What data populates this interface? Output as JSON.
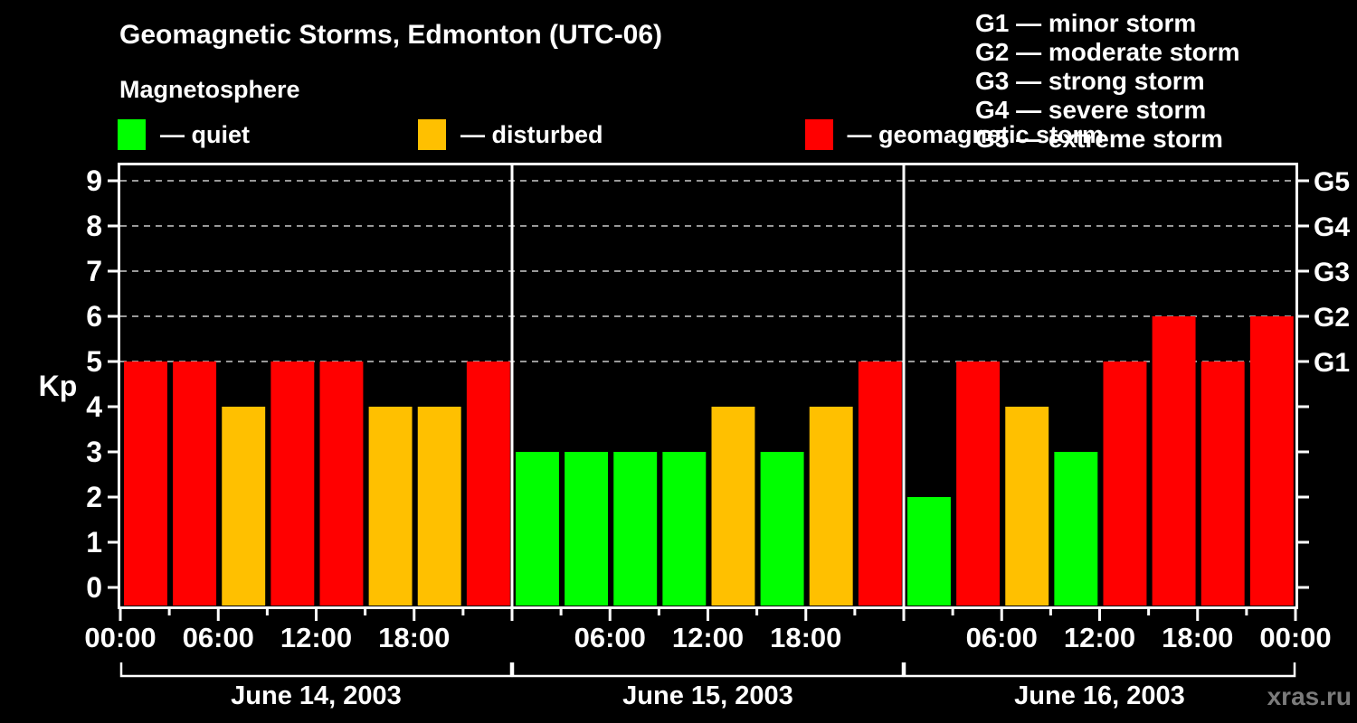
{
  "header": {
    "title": "Geomagnetic Storms, Edmonton (UTC-06)",
    "subtitle": "Magnetosphere"
  },
  "legend": {
    "items": [
      {
        "name": "quiet",
        "label": "— quiet",
        "color": "#00ff00"
      },
      {
        "name": "disturbed",
        "label": "— disturbed",
        "color": "#ffc000"
      },
      {
        "name": "storm",
        "label": "— geomagnetic storm",
        "color": "#ff0000"
      }
    ]
  },
  "storm_scale_legend": {
    "items": [
      "G1 — minor storm",
      "G2 — moderate storm",
      "G3 — strong storm",
      "G4 — severe storm",
      "G5 — extreme storm"
    ]
  },
  "watermark": "xras.ru",
  "chart_data": {
    "type": "bar",
    "title": "Geomagnetic Storms, Edmonton (UTC-06)",
    "subtitle": "Magnetosphere",
    "ylabel": "Kp",
    "ylim": [
      0,
      9
    ],
    "yticks": [
      0,
      1,
      2,
      3,
      4,
      5,
      6,
      7,
      8,
      9
    ],
    "gridline_values": [
      5,
      6,
      7,
      8,
      9
    ],
    "grid": "dashed horizontal at storm levels only",
    "right_axis_labels": [
      {
        "kp": 5,
        "label": "G1"
      },
      {
        "kp": 6,
        "label": "G2"
      },
      {
        "kp": 7,
        "label": "G3"
      },
      {
        "kp": 8,
        "label": "G4"
      },
      {
        "kp": 9,
        "label": "G5"
      }
    ],
    "bar_interval_hours": 3,
    "x_major_tick_labels": [
      "00:00",
      "06:00",
      "12:00",
      "18:00"
    ],
    "x_final_tick_label": "00:00",
    "color_mapping": {
      "quiet": {
        "max_kp": 3,
        "color": "#00ff00"
      },
      "disturbed": {
        "kp": 4,
        "color": "#ffc000"
      },
      "storm": {
        "min_kp": 5,
        "color": "#ff0000"
      }
    },
    "days": [
      {
        "date": "June 14, 2003",
        "kp_values": [
          5,
          5,
          4,
          5,
          5,
          4,
          4,
          5
        ]
      },
      {
        "date": "June 15, 2003",
        "kp_values": [
          3,
          3,
          3,
          3,
          4,
          3,
          4,
          5
        ]
      },
      {
        "date": "June 16, 2003",
        "kp_values": [
          2,
          5,
          4,
          3,
          5,
          6,
          5,
          6
        ]
      }
    ],
    "colors": {
      "background": "#000000",
      "axis": "#ffffff",
      "gridline": "#999999",
      "watermark": "#7b7b7b"
    }
  }
}
